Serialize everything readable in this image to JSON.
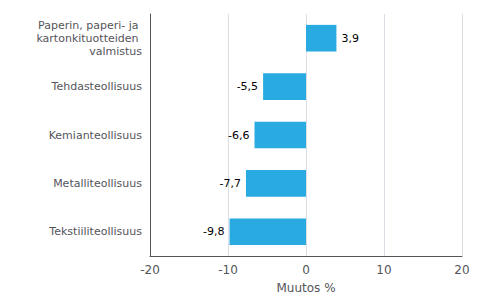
{
  "chart_data": {
    "type": "bar",
    "orientation": "horizontal",
    "categories": [
      "Tekstiiliteollisuus",
      "Metalliteollisuus",
      "Kemianteollisuus",
      "Tehdasteollisuus",
      "Paperin, paperi- ja kartonkituotteiden valmistus"
    ],
    "values": [
      -9.8,
      -7.7,
      -6.6,
      -5.5,
      3.9
    ],
    "value_labels": [
      "-9,8",
      "-7,7",
      "-6,6",
      "-5,5",
      "3,9"
    ],
    "data_labels": true,
    "color": "#29abe2",
    "xlabel": "Muutos %",
    "xlim": [
      -20,
      20
    ],
    "xticks": [
      -20,
      -10,
      0,
      10,
      20
    ],
    "grid": true
  }
}
